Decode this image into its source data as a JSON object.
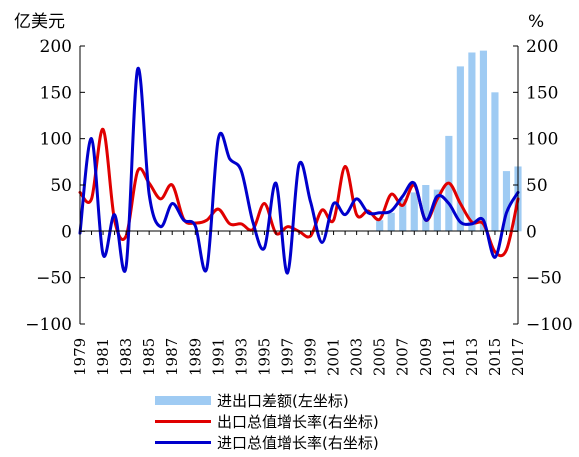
{
  "chart_data": {
    "type": "bar+line",
    "left_unit": "亿美元",
    "right_unit": "%",
    "ylim_left": [
      -100,
      200
    ],
    "ylim_right": [
      -100,
      200
    ],
    "y_ticks": [
      -100,
      -50,
      0,
      50,
      100,
      150,
      200
    ],
    "y_tick_labels": [
      "−100",
      "−50",
      "0",
      "50",
      "100",
      "150",
      "200"
    ],
    "x": [
      1979,
      1980,
      1981,
      1982,
      1983,
      1984,
      1985,
      1986,
      1987,
      1988,
      1989,
      1990,
      1991,
      1992,
      1993,
      1994,
      1995,
      1996,
      1997,
      1998,
      1999,
      2000,
      2001,
      2002,
      2003,
      2004,
      2005,
      2006,
      2007,
      2008,
      2009,
      2010,
      2011,
      2012,
      2013,
      2014,
      2015,
      2016,
      2017
    ],
    "x_tick_labels": [
      "1979",
      "1981",
      "1983",
      "1985",
      "1987",
      "1989",
      "1991",
      "1993",
      "1995",
      "1997",
      "1999",
      "2001",
      "2003",
      "2005",
      "2007",
      "2009",
      "2011",
      "2013",
      "2015",
      "2017"
    ],
    "series": [
      {
        "name": "进出口差额(左坐标)",
        "kind": "bar",
        "axis": "left",
        "color": "#9fcbf3",
        "values": [
          0,
          0,
          0,
          0,
          0,
          0,
          0,
          0,
          0,
          0,
          0,
          0,
          0,
          0,
          0,
          0,
          0,
          0,
          0,
          0,
          0,
          0,
          0,
          0,
          0,
          0,
          12,
          20,
          35,
          42,
          50,
          45,
          103,
          178,
          193,
          195,
          150,
          65,
          70
        ]
      },
      {
        "name": "出口总值增长率(右坐标)",
        "kind": "line",
        "axis": "right",
        "color": "#e00000",
        "values": [
          42,
          35,
          110,
          12,
          -5,
          65,
          52,
          35,
          50,
          13,
          9,
          12,
          24,
          8,
          8,
          2,
          30,
          -2,
          5,
          0,
          -5,
          23,
          12,
          70,
          18,
          22,
          13,
          40,
          28,
          50,
          12,
          35,
          52,
          30,
          10,
          8,
          -22,
          -20,
          35
        ]
      },
      {
        "name": "进口总值增长率(右坐标)",
        "kind": "line",
        "axis": "right",
        "color": "#0000cc",
        "values": [
          -2,
          100,
          -25,
          18,
          -38,
          175,
          40,
          5,
          30,
          12,
          6,
          -40,
          100,
          78,
          65,
          10,
          -18,
          52,
          -45,
          72,
          32,
          -12,
          30,
          18,
          35,
          20,
          20,
          22,
          38,
          52,
          12,
          38,
          30,
          10,
          8,
          12,
          -28,
          20,
          42
        ]
      }
    ]
  }
}
